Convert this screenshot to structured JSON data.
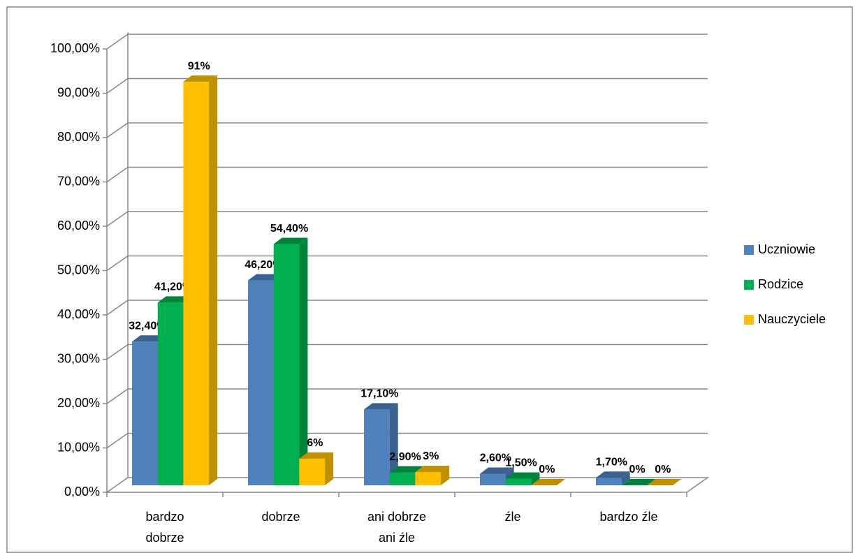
{
  "chart_data": {
    "type": "bar3d",
    "categories": [
      "bardzo dobrze",
      "dobrze",
      "ani dobrze ani źle",
      "źle",
      "bardzo źle"
    ],
    "series": [
      {
        "name": "Uczniowie",
        "color": "#4f81bd",
        "side": "#3a6190",
        "values": [
          32.4,
          46.2,
          17.1,
          2.6,
          1.7
        ],
        "value_labels": [
          "32,40%",
          "46,20%",
          "17,10%",
          "2,60%",
          "1,70%"
        ]
      },
      {
        "name": "Rodzice",
        "color": "#00b050",
        "side": "#00843c",
        "values": [
          41.2,
          54.4,
          2.9,
          1.5,
          0
        ],
        "value_labels": [
          "41,20%",
          "54,40%",
          "2,90%",
          "1,50%",
          "0%"
        ]
      },
      {
        "name": "Nauczyciele",
        "color": "#ffc000",
        "side": "#bf9000",
        "values": [
          91,
          6,
          3,
          0,
          0
        ],
        "value_labels": [
          "91%",
          "6%",
          "3%",
          "0%",
          "0%"
        ]
      }
    ],
    "ylim": [
      0,
      100
    ],
    "yticks": [
      {
        "value": 0,
        "label": "0,00%"
      },
      {
        "value": 10,
        "label": "10,00%"
      },
      {
        "value": 20,
        "label": "20,00%"
      },
      {
        "value": 30,
        "label": "30,00%"
      },
      {
        "value": 40,
        "label": "40,00%"
      },
      {
        "value": 50,
        "label": "50,00%"
      },
      {
        "value": 60,
        "label": "60,00%"
      },
      {
        "value": 70,
        "label": "70,00%"
      },
      {
        "value": 80,
        "label": "80,00%"
      },
      {
        "value": 90,
        "label": "90,00%"
      },
      {
        "value": 100,
        "label": "100,00%"
      }
    ],
    "grid": true,
    "legend": "right"
  }
}
